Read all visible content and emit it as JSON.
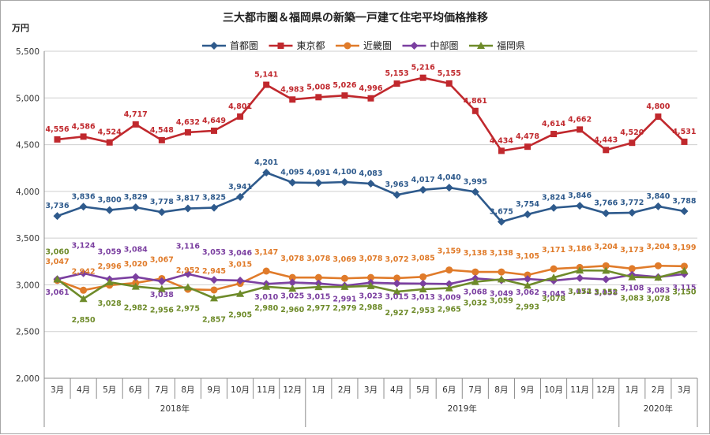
{
  "chart_data": {
    "type": "line",
    "title": "三大都市圏＆福岡県の新築一戸建て住宅平均価格推移",
    "unit_label": "万円",
    "ylim": [
      2000,
      5500
    ],
    "yticks": [
      "2,000",
      "2,500",
      "3,000",
      "3,500",
      "4,000",
      "4,500",
      "5,000",
      "5,500"
    ],
    "grid": true,
    "legend_position": "top",
    "categories": [
      "3月",
      "4月",
      "5月",
      "6月",
      "7月",
      "8月",
      "9月",
      "10月",
      "11月",
      "12月",
      "1月",
      "2月",
      "3月",
      "4月",
      "5月",
      "6月",
      "7月",
      "8月",
      "9月",
      "10月",
      "11月",
      "12月",
      "1月",
      "2月",
      "3月"
    ],
    "year_groups": [
      {
        "label": "2018年",
        "start": 0,
        "end": 9
      },
      {
        "label": "2019年",
        "start": 10,
        "end": 21
      },
      {
        "label": "2020年",
        "start": 22,
        "end": 24
      }
    ],
    "series": [
      {
        "name": "首都圏",
        "color": "#2e5a8c",
        "marker": "diamond",
        "values": [
          3736,
          3836,
          3800,
          3829,
          3778,
          3817,
          3825,
          3941,
          4201,
          4095,
          4091,
          4100,
          4083,
          3963,
          4017,
          4040,
          3995,
          3675,
          3754,
          3824,
          3846,
          3766,
          3772,
          3840,
          3788
        ]
      },
      {
        "name": "東京都",
        "color": "#c0282d",
        "marker": "square",
        "values": [
          4556,
          4586,
          4524,
          4717,
          4548,
          4632,
          4649,
          4801,
          5141,
          4983,
          5008,
          5026,
          4996,
          5153,
          5216,
          5155,
          4861,
          4434,
          4478,
          4614,
          4662,
          4443,
          4520,
          4800,
          4531
        ]
      },
      {
        "name": "近畿圏",
        "color": "#e07b2a",
        "marker": "circle",
        "values": [
          3047,
          2942,
          2996,
          3020,
          3067,
          2952,
          2945,
          3015,
          3147,
          3078,
          3078,
          3069,
          3078,
          3072,
          3085,
          3159,
          3138,
          3138,
          3105,
          3171,
          3186,
          3204,
          3173,
          3204,
          3199
        ]
      },
      {
        "name": "中部圏",
        "color": "#7b3fa0",
        "marker": "diamond",
        "values": [
          3061,
          3124,
          3059,
          3084,
          3038,
          3116,
          3053,
          3046,
          3010,
          3025,
          3015,
          2991,
          3023,
          3015,
          3013,
          3009,
          3068,
          3049,
          3062,
          3045,
          3072,
          3058,
          3108,
          3083,
          3115
        ]
      },
      {
        "name": "福岡県",
        "color": "#6e8b2a",
        "marker": "triangle",
        "values": [
          3060,
          2850,
          3028,
          2982,
          2956,
          2975,
          2857,
          2905,
          2980,
          2960,
          2977,
          2979,
          2988,
          2927,
          2953,
          2965,
          3032,
          3059,
          2993,
          3078,
          3154,
          3152,
          3083,
          3078,
          3150
        ]
      }
    ]
  }
}
